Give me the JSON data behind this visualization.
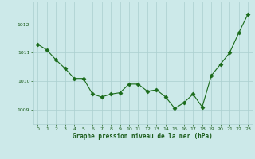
{
  "x": [
    0,
    1,
    2,
    3,
    4,
    5,
    6,
    7,
    8,
    9,
    10,
    11,
    12,
    13,
    14,
    15,
    16,
    17,
    18,
    19,
    20,
    21,
    22,
    23
  ],
  "y": [
    1011.3,
    1011.1,
    1010.75,
    1010.45,
    1010.1,
    1010.1,
    1009.55,
    1009.45,
    1009.55,
    1009.6,
    1009.9,
    1009.9,
    1009.65,
    1009.7,
    1009.45,
    1009.05,
    1009.25,
    1009.55,
    1009.1,
    1010.2,
    1010.6,
    1011.0,
    1011.7,
    1012.35
  ],
  "line_color": "#1a6b1a",
  "marker": "D",
  "marker_size": 2.5,
  "bg_color": "#cce9e9",
  "grid_color": "#aacfcf",
  "xlabel": "Graphe pression niveau de la mer (hPa)",
  "xlabel_color": "#1a5c1a",
  "tick_color": "#1a5c1a",
  "ylim": [
    1008.5,
    1012.8
  ],
  "yticks": [
    1009,
    1010,
    1011,
    1012
  ],
  "xlim": [
    -0.5,
    23.5
  ],
  "xticks": [
    0,
    1,
    2,
    3,
    4,
    5,
    6,
    7,
    8,
    9,
    10,
    11,
    12,
    13,
    14,
    15,
    16,
    17,
    18,
    19,
    20,
    21,
    22,
    23
  ]
}
